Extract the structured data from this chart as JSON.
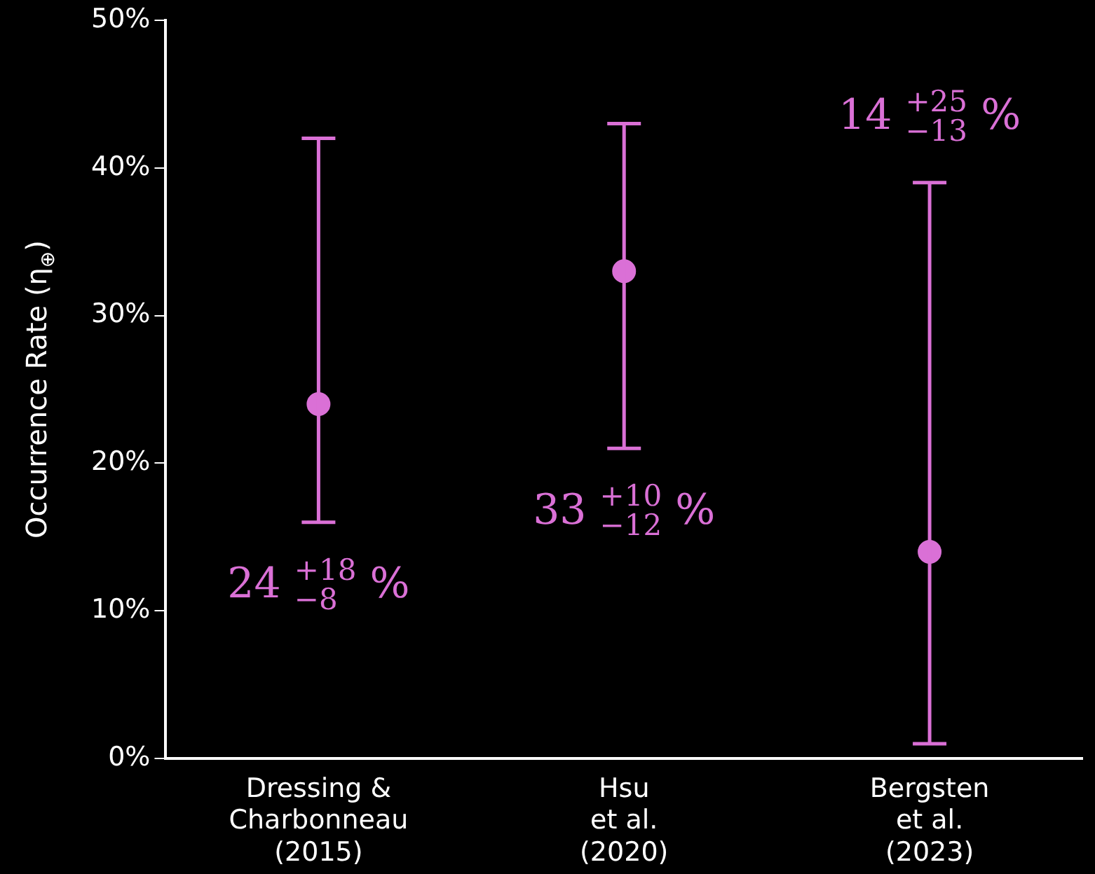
{
  "chart_data": {
    "type": "scatter",
    "ylabel": "Occurrence Rate (η$_{⊕}$)",
    "categories": [
      "Dressing &\nCharbonneau\n(2015)",
      "Hsu\net al.\n(2020)",
      "Bergsten\net al.\n(2023)"
    ],
    "values": [
      24,
      33,
      14
    ],
    "errors": [
      [
        16,
        42
      ],
      [
        21,
        43
      ],
      [
        1,
        39
      ]
    ],
    "color": "#da70d6",
    "marker": "circle",
    "ylim": [
      0,
      50
    ],
    "yticks": [
      {
        "value": 0,
        "label": "0%"
      },
      {
        "value": 10,
        "label": "10%"
      },
      {
        "value": 20,
        "label": "20%"
      },
      {
        "value": 30,
        "label": "30%"
      },
      {
        "value": 40,
        "label": "40%"
      },
      {
        "value": 50,
        "label": "50%"
      }
    ],
    "grid": false,
    "legend": false,
    "annotations": [
      "24 $^{+18}$$_{−8}$ %",
      "33 $^{+10}$$_{−12}$ %",
      "14 $^{+25}$$_{−13}$ %"
    ]
  }
}
